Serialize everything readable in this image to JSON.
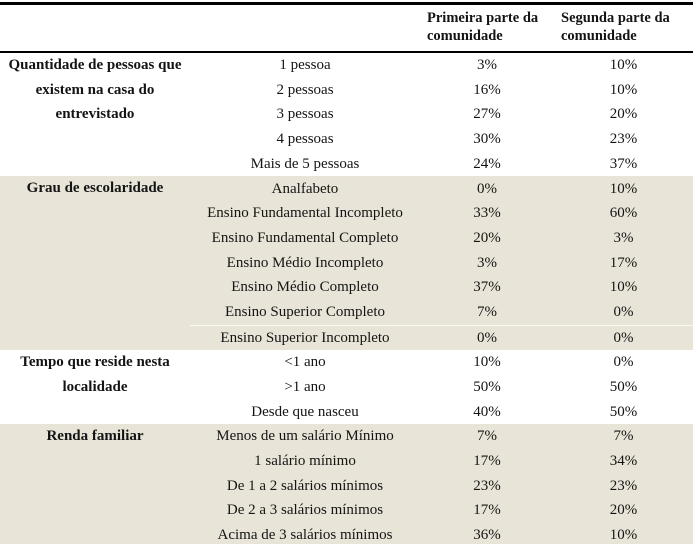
{
  "table": {
    "headers": [
      "Primeira parte da comunidade",
      "Segunda parte da comunidade"
    ],
    "sections": [
      {
        "label": "Quantidade de pessoas que existem na casa do entrevistado",
        "shaded": false,
        "rows": [
          {
            "item": "1 pessoa",
            "values": [
              "3%",
              "10%"
            ]
          },
          {
            "item": "2 pessoas",
            "values": [
              "16%",
              "10%"
            ]
          },
          {
            "item": "3 pessoas",
            "values": [
              "27%",
              "20%"
            ]
          },
          {
            "item": "4 pessoas",
            "values": [
              "30%",
              "23%"
            ]
          },
          {
            "item": "Mais de 5 pessoas",
            "values": [
              "24%",
              "37%"
            ]
          }
        ]
      },
      {
        "label": "Grau de escolaridade",
        "shaded": true,
        "rows": [
          {
            "item": "Analfabeto",
            "values": [
              "0%",
              "10%"
            ]
          },
          {
            "item": "Ensino Fundamental Incompleto",
            "values": [
              "33%",
              "60%"
            ]
          },
          {
            "item": "Ensino Fundamental Completo",
            "values": [
              "20%",
              "3%"
            ]
          },
          {
            "item": "Ensino Médio Incompleto",
            "values": [
              "3%",
              "17%"
            ]
          },
          {
            "item": "Ensino Médio Completo",
            "values": [
              "37%",
              "10%"
            ]
          },
          {
            "item": "Ensino Superior Completo",
            "values": [
              "7%",
              "0%"
            ]
          },
          {
            "item": "Ensino Superior Incompleto",
            "values": [
              "0%",
              "0%"
            ],
            "divider_above": true
          }
        ]
      },
      {
        "label": "Tempo que reside nesta localidade",
        "shaded": false,
        "rows": [
          {
            "item": "<1 ano",
            "values": [
              "10%",
              "0%"
            ]
          },
          {
            "item": ">1 ano",
            "values": [
              "50%",
              "50%"
            ]
          },
          {
            "item": "Desde que nasceu",
            "values": [
              "40%",
              "50%"
            ]
          }
        ]
      },
      {
        "label": "Renda familiar",
        "shaded": true,
        "rows": [
          {
            "item": "Menos de um salário Mínimo",
            "values": [
              "7%",
              "7%"
            ]
          },
          {
            "item": "1 salário mínimo",
            "values": [
              "17%",
              "34%"
            ]
          },
          {
            "item": "De 1 a 2 salários mínimos",
            "values": [
              "23%",
              "23%"
            ]
          },
          {
            "item": "De 2 a 3 salários mínimos",
            "values": [
              "17%",
              "20%"
            ]
          },
          {
            "item": "Acima de 3 salários mínimos",
            "values": [
              "36%",
              "10%"
            ]
          }
        ]
      }
    ]
  },
  "colors": {
    "shaded_row_bg": "#e8e5d8",
    "rule": "#000000",
    "text": "#141414"
  }
}
